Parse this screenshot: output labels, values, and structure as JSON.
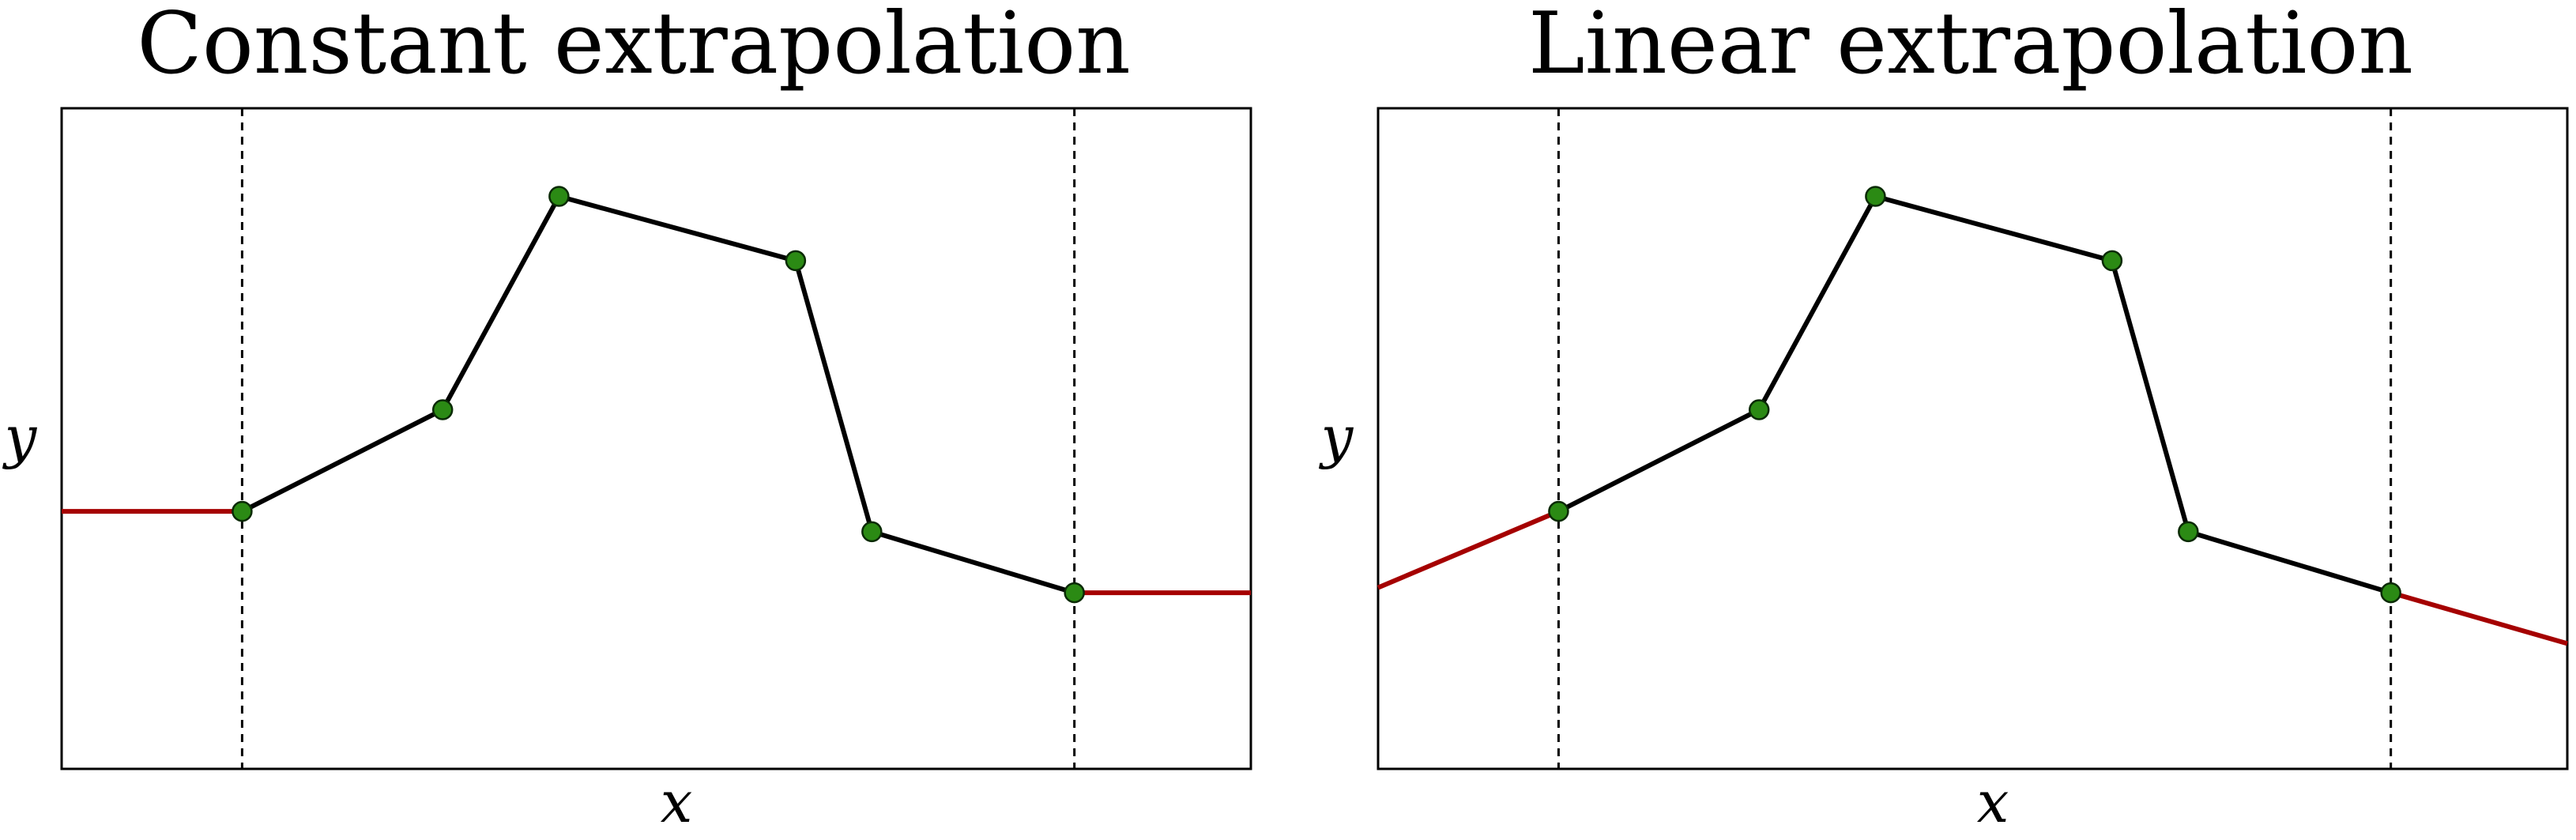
{
  "colors": {
    "interior_line": "#000000",
    "extrapolation_line": "#a50000",
    "knot_fill": "#2b8a14",
    "knot_edge": "#0a2a05",
    "boundary_line": "#000000",
    "frame": "#000000"
  },
  "chart_data": [
    {
      "type": "line",
      "title": "Constant extrapolation",
      "xlabel": "x",
      "ylabel": "y",
      "xlim": [
        0,
        5.93
      ],
      "ylim": [
        0,
        3.9
      ],
      "grid": false,
      "xticks": [],
      "yticks": [],
      "boundaries": [
        0.9,
        5.05
      ],
      "knots": {
        "x": [
          0.9,
          1.9,
          2.48,
          3.66,
          4.04,
          5.05
        ],
        "y": [
          1.52,
          2.12,
          3.38,
          3.0,
          1.4,
          1.04
        ]
      },
      "extrapolation": {
        "left": {
          "x": [
            0,
            0.9
          ],
          "y": [
            1.52,
            1.52
          ]
        },
        "right": {
          "x": [
            5.05,
            5.93
          ],
          "y": [
            1.04,
            1.04
          ]
        }
      }
    },
    {
      "type": "line",
      "title": "Linear extrapolation",
      "xlabel": "x",
      "ylabel": "y",
      "xlim": [
        0,
        5.93
      ],
      "ylim": [
        0,
        3.9
      ],
      "grid": false,
      "xticks": [],
      "yticks": [],
      "boundaries": [
        0.9,
        5.05
      ],
      "knots": {
        "x": [
          0.9,
          1.9,
          2.48,
          3.66,
          4.04,
          5.05
        ],
        "y": [
          1.52,
          2.12,
          3.38,
          3.0,
          1.4,
          1.04
        ]
      },
      "extrapolation": {
        "left": {
          "x": [
            0,
            0.9
          ],
          "y": [
            1.07,
            1.52
          ]
        },
        "right": {
          "x": [
            5.05,
            5.93
          ],
          "y": [
            1.04,
            0.74
          ]
        }
      }
    }
  ]
}
